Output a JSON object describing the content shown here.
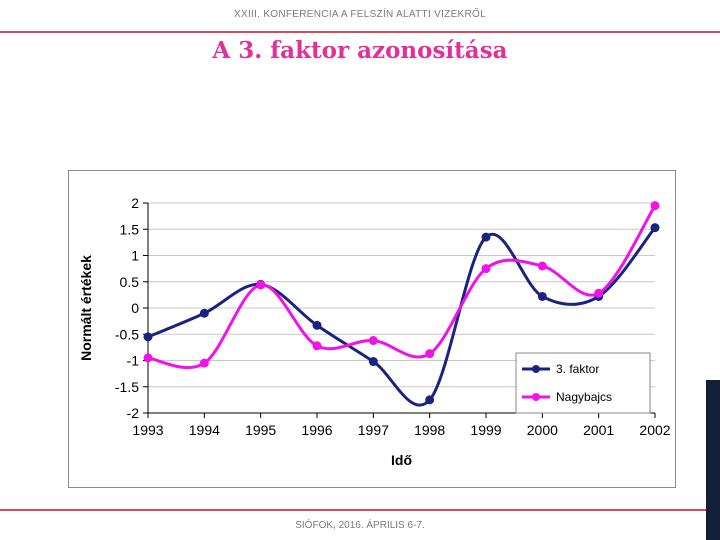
{
  "header": {
    "conference": "XXIII. KONFERENCIA A FELSZÍN ALATTI VIZEKRŐL"
  },
  "slide": {
    "title": "A 3. faktor azonosítása"
  },
  "footer": {
    "location_date": "SIÓFOK, 2016. ÁPRILIS 6-7."
  },
  "chart_data": {
    "type": "line",
    "title": "",
    "xlabel": "Idő",
    "ylabel": "Normált értékek",
    "categories": [
      "1993",
      "1994",
      "1995",
      "1996",
      "1997",
      "1998",
      "1999",
      "2000",
      "2001",
      "2002"
    ],
    "ylim": [
      -2,
      2
    ],
    "yticks": [
      "2",
      "1.5",
      "1",
      "0.5",
      "0",
      "-0.5",
      "-1",
      "-1.5",
      "-2"
    ],
    "ytick_values": [
      2,
      1.5,
      1,
      0.5,
      0,
      -0.5,
      -1,
      -1.5,
      -2
    ],
    "grid": true,
    "legend_position": "bottom-right",
    "series": [
      {
        "name": "3. faktor",
        "color": "#1a237e",
        "values": [
          -0.55,
          -0.1,
          0.45,
          -0.33,
          -1.02,
          -1.75,
          1.35,
          0.22,
          0.22,
          1.53
        ]
      },
      {
        "name": "Nagybajcs",
        "color": "#f012e8",
        "values": [
          -0.95,
          -1.05,
          0.44,
          -0.72,
          -0.62,
          -0.87,
          0.75,
          0.8,
          0.28,
          1.95
        ]
      }
    ]
  }
}
